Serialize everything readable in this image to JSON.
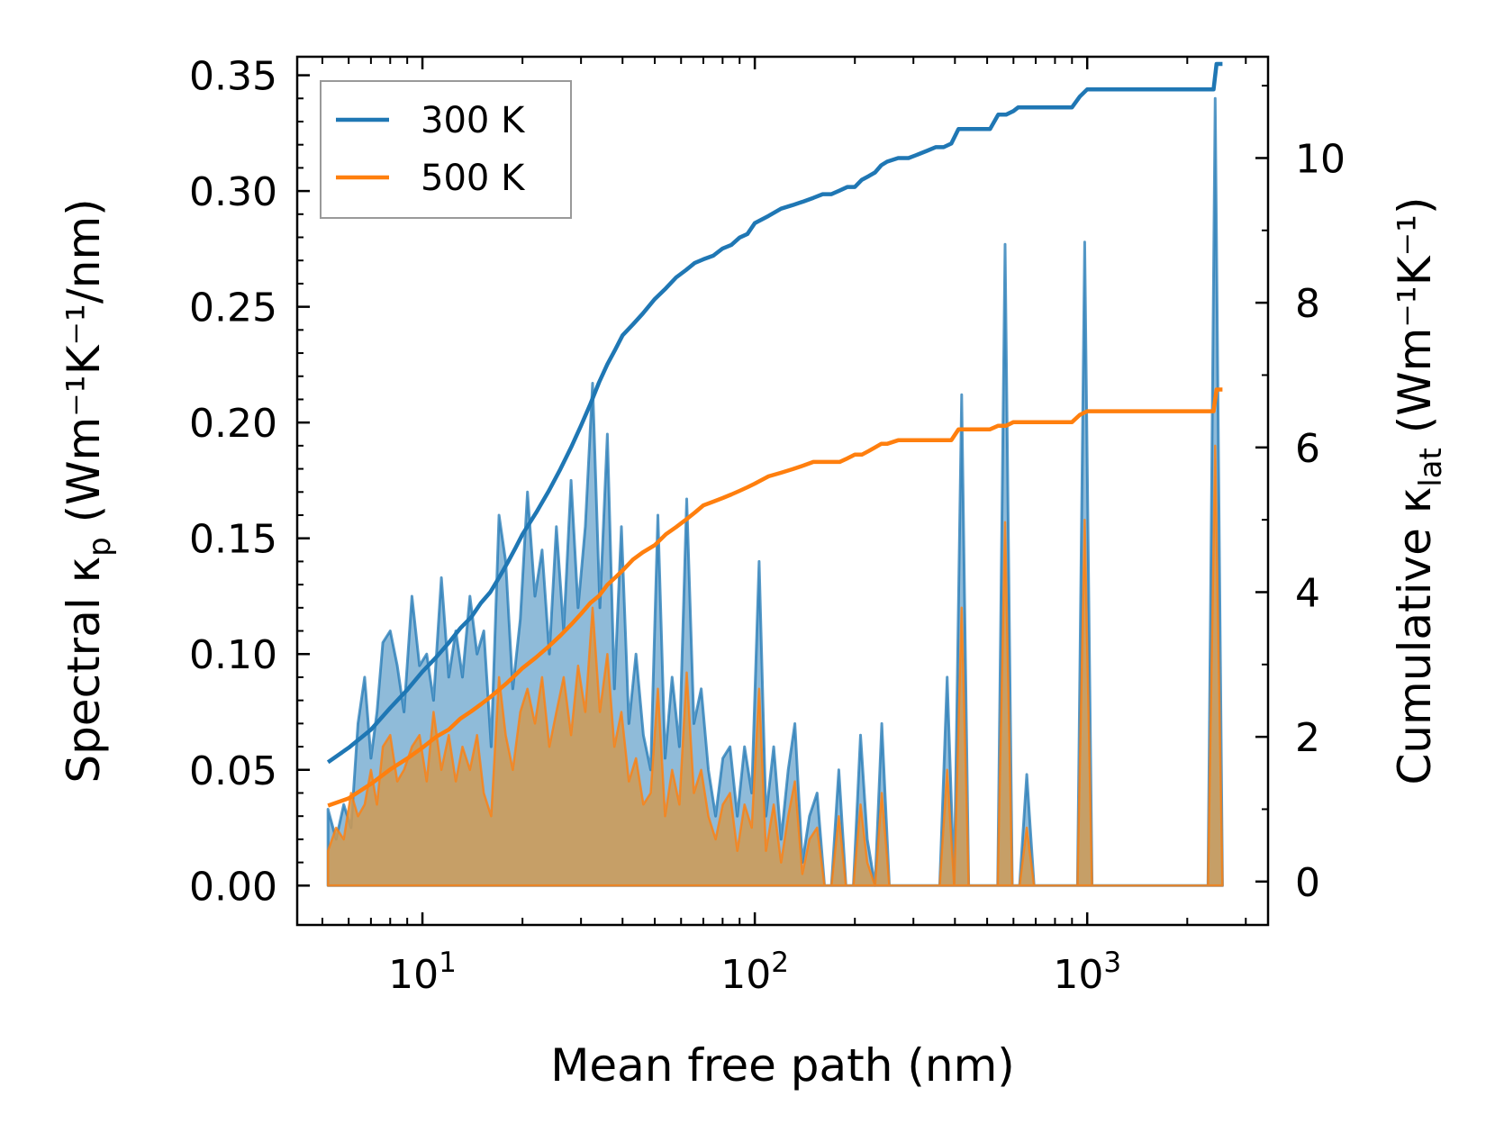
{
  "chart_data": {
    "type": "line",
    "title": "",
    "xlabel": "Mean free path (nm)",
    "ylabel_left": {
      "prefix": "Spectral κ",
      "sub": "p",
      "units": "(Wm⁻¹K⁻¹/nm)"
    },
    "ylabel_right": {
      "prefix": "Cumulative κ",
      "sub": "lat",
      "units": "(Wm⁻¹K⁻¹)"
    },
    "xscale": "log",
    "xlim": [
      4.2,
      3500
    ],
    "ylim_left": [
      -0.017,
      0.358
    ],
    "ylim_right": [
      -0.6,
      11.4
    ],
    "xticks": [
      {
        "base": "10",
        "exp": "1",
        "value": 10
      },
      {
        "base": "10",
        "exp": "2",
        "value": 100
      },
      {
        "base": "10",
        "exp": "3",
        "value": 1000
      }
    ],
    "yticks_left": [
      "0.00",
      "0.05",
      "0.10",
      "0.15",
      "0.20",
      "0.25",
      "0.30",
      "0.35"
    ],
    "yticks_right": [
      "0",
      "2",
      "4",
      "6",
      "8",
      "10"
    ],
    "legend": {
      "position": "top-left",
      "entries": [
        "300 K",
        "500 K"
      ]
    },
    "colors": {
      "s300": "#1f77b4",
      "s500": "#ff7f0e",
      "fill300": "#1f77b4",
      "fill500": "#d09a52"
    },
    "spectral_300K": {
      "x": [
        5.2,
        5.5,
        5.8,
        6.1,
        6.4,
        6.7,
        7.0,
        7.3,
        7.6,
        8.0,
        8.4,
        8.8,
        9.3,
        9.8,
        10.3,
        10.8,
        11.4,
        12.0,
        12.6,
        13.2,
        13.9,
        14.6,
        15.3,
        16.1,
        17.0,
        17.8,
        18.7,
        19.7,
        20.7,
        21.8,
        22.9,
        24.1,
        25.3,
        26.6,
        28.0,
        29.4,
        30.9,
        32.5,
        34.2,
        36.0,
        37.8,
        39.7,
        41.8,
        43.9,
        46.2,
        48.6,
        51.1,
        53.7,
        56.4,
        59.3,
        62.4,
        65.6,
        69.0,
        72.5,
        76.2,
        80.1,
        84.2,
        88.6,
        93.1,
        97.9,
        103,
        108,
        114,
        120,
        126,
        132,
        139,
        146,
        154,
        162,
        170,
        179,
        188,
        198,
        208,
        218,
        230,
        241,
        254,
        267,
        280,
        295,
        310,
        326,
        343,
        360,
        379,
        398,
        419,
        440,
        463,
        487,
        512,
        538,
        566,
        595,
        626,
        658,
        692,
        727,
        765,
        804,
        845,
        889,
        935,
        983,
        1034,
        1087,
        1143,
        1202,
        1264,
        1329,
        1397,
        1469,
        1545,
        1624,
        1708,
        1796,
        1888,
        1985,
        2087,
        2195,
        2308,
        2427,
        2552
      ],
      "y": [
        0.033,
        0.02,
        0.035,
        0.025,
        0.07,
        0.09,
        0.055,
        0.075,
        0.105,
        0.11,
        0.095,
        0.075,
        0.125,
        0.095,
        0.1,
        0.08,
        0.133,
        0.09,
        0.11,
        0.09,
        0.125,
        0.1,
        0.11,
        0.06,
        0.16,
        0.14,
        0.085,
        0.115,
        0.17,
        0.125,
        0.145,
        0.1,
        0.155,
        0.11,
        0.175,
        0.12,
        0.155,
        0.217,
        0.12,
        0.195,
        0.085,
        0.155,
        0.07,
        0.1,
        0.065,
        0.05,
        0.16,
        0.055,
        0.09,
        0.06,
        0.167,
        0.07,
        0.085,
        0.05,
        0.03,
        0.055,
        0.06,
        0.03,
        0.06,
        0.04,
        0.14,
        0.03,
        0.06,
        0.02,
        0.05,
        0.07,
        0.01,
        0.03,
        0.04,
        0.0,
        0.0,
        0.05,
        0.0,
        0.0,
        0.065,
        0.02,
        0.0,
        0.07,
        0.0,
        0.0,
        0.0,
        0.0,
        0.0,
        0.0,
        0.0,
        0.0,
        0.09,
        0.0,
        0.212,
        0.0,
        0.0,
        0.0,
        0.0,
        0.0,
        0.277,
        0.0,
        0.0,
        0.048,
        0.0,
        0.0,
        0.0,
        0.0,
        0.0,
        0.0,
        0.0,
        0.278,
        0.0,
        0.0,
        0.0,
        0.0,
        0.0,
        0.0,
        0.0,
        0.0,
        0.0,
        0.0,
        0.0,
        0.0,
        0.0,
        0.0,
        0.0,
        0.0,
        0.0,
        0.34,
        0.0
      ]
    },
    "spectral_500K": {
      "x": [
        5.2,
        5.5,
        5.8,
        6.1,
        6.4,
        6.7,
        7.0,
        7.3,
        7.6,
        8.0,
        8.4,
        8.8,
        9.3,
        9.8,
        10.3,
        10.8,
        11.4,
        12.0,
        12.6,
        13.2,
        13.9,
        14.6,
        15.3,
        16.1,
        17.0,
        17.8,
        18.7,
        19.7,
        20.7,
        21.8,
        22.9,
        24.1,
        25.3,
        26.6,
        28.0,
        29.4,
        30.9,
        32.5,
        34.2,
        36.0,
        37.8,
        39.7,
        41.8,
        43.9,
        46.2,
        48.6,
        51.1,
        53.7,
        56.4,
        59.3,
        62.4,
        65.6,
        69.0,
        72.5,
        76.2,
        80.1,
        84.2,
        88.6,
        93.1,
        97.9,
        103,
        108,
        114,
        120,
        126,
        132,
        139,
        146,
        154,
        162,
        170,
        179,
        188,
        198,
        208,
        218,
        230,
        241,
        254,
        267,
        280,
        295,
        310,
        326,
        343,
        360,
        379,
        398,
        419,
        440,
        463,
        487,
        512,
        538,
        566,
        595,
        626,
        658,
        692,
        727,
        765,
        804,
        845,
        889,
        935,
        983,
        1034,
        1087,
        1143,
        1202,
        1264,
        1329,
        1397,
        1469,
        1545,
        1624,
        1708,
        1796,
        1888,
        1985,
        2087,
        2195,
        2308,
        2427,
        2552
      ],
      "y": [
        0.015,
        0.025,
        0.02,
        0.04,
        0.03,
        0.035,
        0.05,
        0.035,
        0.06,
        0.065,
        0.045,
        0.05,
        0.06,
        0.065,
        0.045,
        0.075,
        0.05,
        0.065,
        0.045,
        0.06,
        0.05,
        0.065,
        0.04,
        0.03,
        0.09,
        0.065,
        0.05,
        0.075,
        0.085,
        0.07,
        0.09,
        0.06,
        0.075,
        0.09,
        0.065,
        0.095,
        0.075,
        0.12,
        0.075,
        0.1,
        0.06,
        0.075,
        0.045,
        0.055,
        0.035,
        0.04,
        0.085,
        0.03,
        0.05,
        0.035,
        0.092,
        0.04,
        0.05,
        0.03,
        0.02,
        0.035,
        0.04,
        0.015,
        0.035,
        0.025,
        0.085,
        0.015,
        0.035,
        0.01,
        0.03,
        0.045,
        0.005,
        0.02,
        0.025,
        0.0,
        0.0,
        0.03,
        0.0,
        0.0,
        0.035,
        0.01,
        0.0,
        0.04,
        0.0,
        0.0,
        0.0,
        0.0,
        0.0,
        0.0,
        0.0,
        0.0,
        0.05,
        0.0,
        0.12,
        0.0,
        0.0,
        0.0,
        0.0,
        0.0,
        0.157,
        0.0,
        0.0,
        0.025,
        0.0,
        0.0,
        0.0,
        0.0,
        0.0,
        0.0,
        0.0,
        0.158,
        0.0,
        0.0,
        0.0,
        0.0,
        0.0,
        0.0,
        0.0,
        0.0,
        0.0,
        0.0,
        0.0,
        0.0,
        0.0,
        0.0,
        0.0,
        0.0,
        0.0,
        0.19,
        0.0
      ]
    },
    "cumulative_300K": {
      "x": [
        5.2,
        6,
        7,
        8,
        9,
        10,
        11,
        12,
        13,
        14,
        15,
        16,
        17,
        18,
        19,
        20,
        22,
        24,
        26,
        28,
        30,
        32,
        34,
        36,
        38,
        40,
        43,
        46,
        50,
        54,
        58,
        62,
        66,
        70,
        75,
        80,
        85,
        90,
        95,
        100,
        110,
        120,
        130,
        140,
        150,
        160,
        170,
        180,
        190,
        200,
        210,
        220,
        230,
        240,
        250,
        270,
        290,
        310,
        330,
        350,
        370,
        390,
        410,
        430,
        450,
        480,
        510,
        540,
        570,
        600,
        620,
        650,
        700,
        750,
        800,
        850,
        900,
        950,
        1000,
        1050,
        1100,
        1500,
        2000,
        2400,
        2450,
        2552
      ],
      "y": [
        1.65,
        1.85,
        2.1,
        2.4,
        2.65,
        2.9,
        3.1,
        3.3,
        3.5,
        3.65,
        3.85,
        4.0,
        4.2,
        4.4,
        4.6,
        4.8,
        5.1,
        5.4,
        5.7,
        6.0,
        6.3,
        6.6,
        6.9,
        7.15,
        7.35,
        7.55,
        7.7,
        7.85,
        8.05,
        8.2,
        8.35,
        8.45,
        8.55,
        8.6,
        8.65,
        8.75,
        8.8,
        8.9,
        8.95,
        9.1,
        9.2,
        9.3,
        9.35,
        9.4,
        9.45,
        9.5,
        9.5,
        9.55,
        9.6,
        9.6,
        9.7,
        9.75,
        9.8,
        9.9,
        9.95,
        10.0,
        10.0,
        10.05,
        10.1,
        10.15,
        10.15,
        10.2,
        10.4,
        10.4,
        10.4,
        10.4,
        10.4,
        10.6,
        10.6,
        10.65,
        10.7,
        10.7,
        10.7,
        10.7,
        10.7,
        10.7,
        10.7,
        10.85,
        10.95,
        10.95,
        10.95,
        10.95,
        10.95,
        10.95,
        11.3,
        11.3
      ]
    },
    "cumulative_500K": {
      "x": [
        5.2,
        6,
        7,
        8,
        9,
        10,
        11,
        12,
        13,
        14,
        15,
        16,
        17,
        18,
        19,
        20,
        22,
        24,
        26,
        28,
        30,
        32,
        34,
        36,
        38,
        40,
        43,
        46,
        50,
        54,
        58,
        62,
        66,
        70,
        75,
        80,
        85,
        90,
        95,
        100,
        110,
        120,
        130,
        140,
        150,
        160,
        170,
        180,
        190,
        200,
        210,
        220,
        230,
        240,
        250,
        270,
        290,
        310,
        330,
        350,
        370,
        390,
        410,
        430,
        450,
        480,
        510,
        540,
        570,
        600,
        620,
        650,
        700,
        750,
        800,
        850,
        900,
        950,
        1000,
        1050,
        1100,
        1500,
        2000,
        2400,
        2450,
        2552
      ],
      "y": [
        1.05,
        1.15,
        1.35,
        1.55,
        1.7,
        1.85,
        2.0,
        2.1,
        2.25,
        2.35,
        2.45,
        2.55,
        2.65,
        2.75,
        2.85,
        2.95,
        3.1,
        3.25,
        3.4,
        3.55,
        3.7,
        3.85,
        3.95,
        4.1,
        4.2,
        4.3,
        4.45,
        4.55,
        4.65,
        4.8,
        4.9,
        5.0,
        5.1,
        5.2,
        5.25,
        5.3,
        5.35,
        5.4,
        5.45,
        5.5,
        5.6,
        5.65,
        5.7,
        5.75,
        5.8,
        5.8,
        5.8,
        5.8,
        5.85,
        5.9,
        5.9,
        5.95,
        6.0,
        6.05,
        6.05,
        6.1,
        6.1,
        6.1,
        6.1,
        6.1,
        6.1,
        6.1,
        6.25,
        6.25,
        6.25,
        6.25,
        6.25,
        6.3,
        6.3,
        6.35,
        6.35,
        6.35,
        6.35,
        6.35,
        6.35,
        6.35,
        6.35,
        6.45,
        6.5,
        6.5,
        6.5,
        6.5,
        6.5,
        6.5,
        6.8,
        6.8
      ]
    }
  }
}
